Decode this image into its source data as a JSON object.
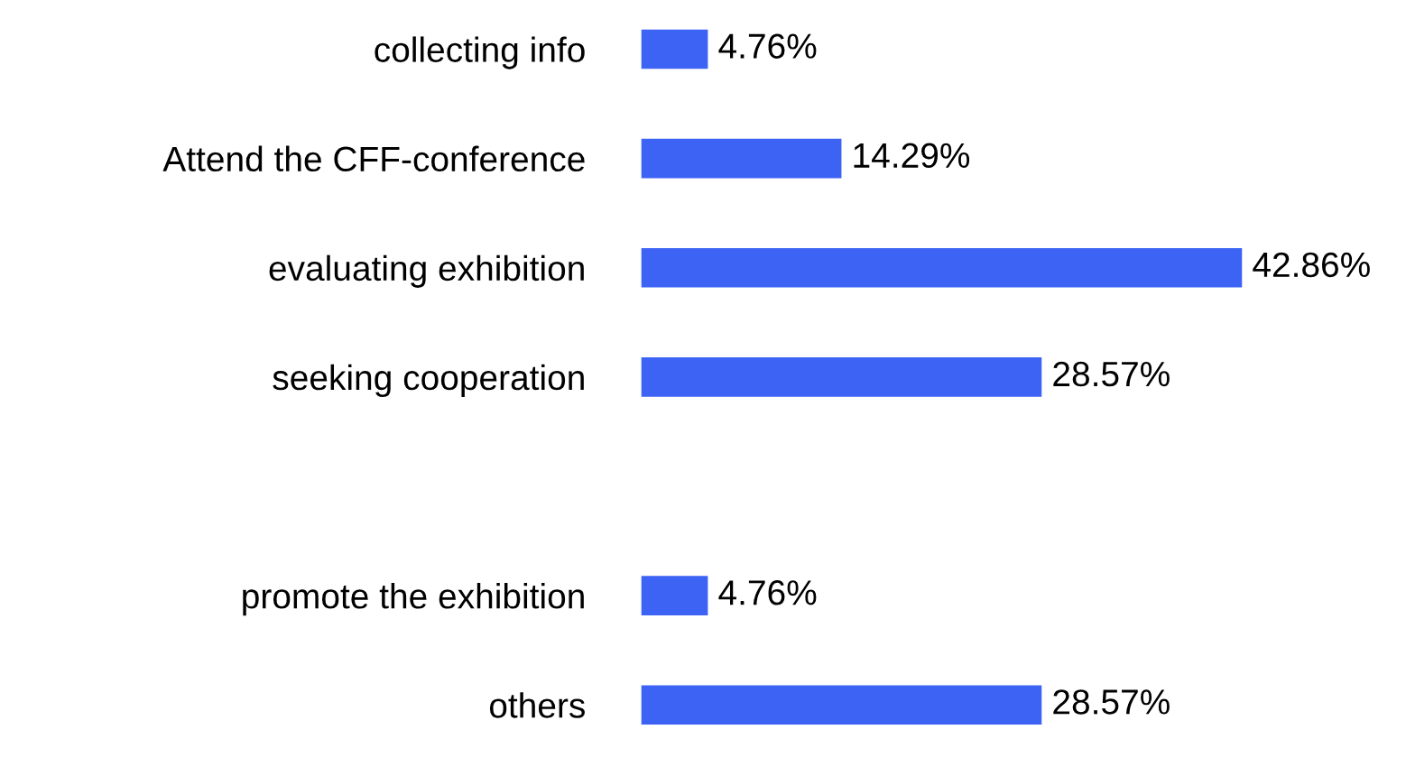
{
  "chart_data": {
    "type": "bar",
    "orientation": "horizontal",
    "categories": [
      "collecting info",
      "Attend the CFF-conference",
      "evaluating exhibition",
      "seeking cooperation",
      null,
      "promote the exhibition",
      "others"
    ],
    "values": [
      4.76,
      14.29,
      42.86,
      28.57,
      null,
      4.76,
      28.57
    ],
    "value_labels": [
      "4.76%",
      "14.29%",
      "42.86%",
      "28.57%",
      null,
      "4.76%",
      "28.57%"
    ],
    "color": "#3d63f5"
  }
}
